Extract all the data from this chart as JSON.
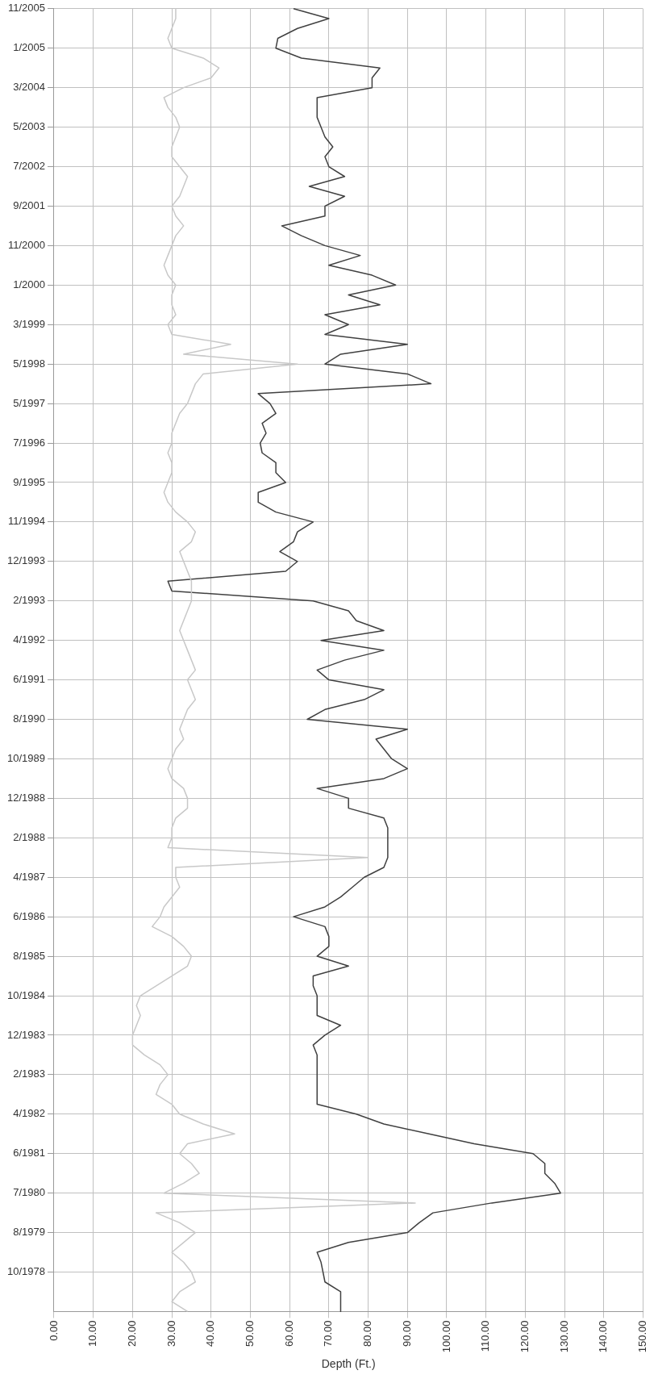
{
  "chart_data": {
    "type": "line",
    "orientation": "horizontal",
    "xlabel": "Depth (Ft.)",
    "categories": [
      "11/2005",
      null,
      null,
      null,
      "1/2005",
      null,
      null,
      null,
      "3/2004",
      null,
      null,
      null,
      "5/2003",
      null,
      null,
      null,
      "7/2002",
      null,
      null,
      null,
      "9/2001",
      null,
      null,
      null,
      "11/2000",
      null,
      null,
      null,
      "1/2000",
      null,
      null,
      null,
      "3/1999",
      null,
      null,
      null,
      "5/1998",
      null,
      null,
      null,
      "5/1997",
      null,
      null,
      null,
      "7/1996",
      null,
      null,
      null,
      "9/1995",
      null,
      null,
      null,
      "11/1994",
      null,
      null,
      null,
      "12/1993",
      null,
      null,
      null,
      "2/1993",
      null,
      null,
      null,
      "4/1992",
      null,
      null,
      null,
      "6/1991",
      null,
      null,
      null,
      "8/1990",
      null,
      null,
      null,
      "10/1989",
      null,
      null,
      null,
      "12/1988",
      null,
      null,
      null,
      "2/1988",
      null,
      null,
      null,
      "4/1987",
      null,
      null,
      null,
      "6/1986",
      null,
      null,
      null,
      "8/1985",
      null,
      null,
      null,
      "10/1984",
      null,
      null,
      null,
      "12/1983",
      null,
      null,
      null,
      "2/1983",
      null,
      null,
      null,
      "4/1982",
      null,
      null,
      null,
      "6/1981",
      null,
      null,
      null,
      "7/1980",
      null,
      null,
      null,
      "8/1979",
      null,
      null,
      null,
      "10/1978",
      null,
      null,
      null,
      null
    ],
    "series": [
      {
        "color": "#c8c8c8",
        "values": [
          31,
          31,
          30,
          29,
          30,
          38,
          42,
          40,
          33,
          28,
          29,
          31,
          32,
          31,
          30,
          30,
          32,
          34,
          33,
          32,
          30,
          31,
          33,
          31,
          30,
          29,
          28,
          29,
          31,
          30,
          30,
          31,
          29,
          30,
          45,
          33,
          62,
          38,
          36,
          35,
          34,
          32,
          31,
          30,
          30,
          29,
          30,
          30,
          29,
          28,
          29,
          31,
          34,
          36,
          35,
          32,
          33,
          34,
          35,
          35,
          35,
          34,
          33,
          32,
          33,
          34,
          35,
          36,
          34,
          35,
          36,
          34,
          33,
          32,
          33,
          31,
          30,
          29,
          30,
          33,
          34,
          34,
          31,
          30,
          30,
          29,
          80,
          31,
          31,
          32,
          30,
          28,
          27,
          25,
          30,
          33,
          35,
          34,
          30,
          26,
          22,
          21,
          22,
          21,
          20,
          20,
          23,
          27,
          29,
          27,
          26,
          30,
          32,
          38,
          46,
          34,
          32,
          35,
          37,
          33,
          28,
          92,
          26,
          32,
          36,
          33,
          30,
          33,
          35,
          36,
          32,
          30,
          34
        ]
      },
      {
        "color": "#404040",
        "values": [
          61,
          70,
          62,
          57,
          56.5,
          63,
          83,
          81,
          81,
          67,
          67,
          67,
          68,
          69,
          71,
          69,
          70,
          74,
          65,
          74,
          69,
          69,
          58,
          63,
          69,
          78,
          70,
          81,
          87,
          75,
          83,
          69,
          75,
          69,
          90,
          73,
          69,
          90,
          96,
          52,
          55,
          56.5,
          53,
          54,
          52.5,
          53,
          56.5,
          56.5,
          59,
          52,
          52,
          56.5,
          66,
          62,
          61,
          57.5,
          62,
          59,
          29,
          30,
          66,
          75,
          77,
          84,
          68,
          84,
          74,
          67,
          70,
          84,
          79,
          69,
          64.5,
          90,
          82,
          84,
          86,
          90,
          84,
          67,
          75,
          75,
          84,
          85,
          85,
          85,
          85,
          84,
          79,
          76,
          73,
          69,
          61,
          69,
          70,
          70,
          67,
          75,
          66,
          66,
          67,
          67,
          67,
          73,
          69,
          66,
          67,
          67,
          67,
          67,
          67,
          67,
          77,
          84,
          95.5,
          107,
          122,
          125,
          125,
          127.5,
          129,
          111.5,
          96.5,
          93,
          90,
          75,
          67,
          68,
          68.5,
          69,
          73,
          73,
          73
        ]
      }
    ],
    "xlim": [
      0,
      150
    ],
    "xticks": [
      {
        "value": 0,
        "label": "0.00"
      },
      {
        "value": 10,
        "label": "10.00"
      },
      {
        "value": 20,
        "label": "20.00"
      },
      {
        "value": 30,
        "label": "30.00"
      },
      {
        "value": 40,
        "label": "40.00"
      },
      {
        "value": 50,
        "label": "50.00"
      },
      {
        "value": 60,
        "label": "60.00"
      },
      {
        "value": 70,
        "label": "70.00"
      },
      {
        "value": 80,
        "label": "80.00"
      },
      {
        "value": 90,
        "label": "90.00"
      },
      {
        "value": 100,
        "label": "100.00"
      },
      {
        "value": 110,
        "label": "110.00"
      },
      {
        "value": 120,
        "label": "120.00"
      },
      {
        "value": 130,
        "label": "130.00"
      },
      {
        "value": 140,
        "label": "140.00"
      },
      {
        "value": 150,
        "label": "150.00"
      }
    ],
    "grid": true,
    "marker": "none",
    "line_style": "solid"
  }
}
